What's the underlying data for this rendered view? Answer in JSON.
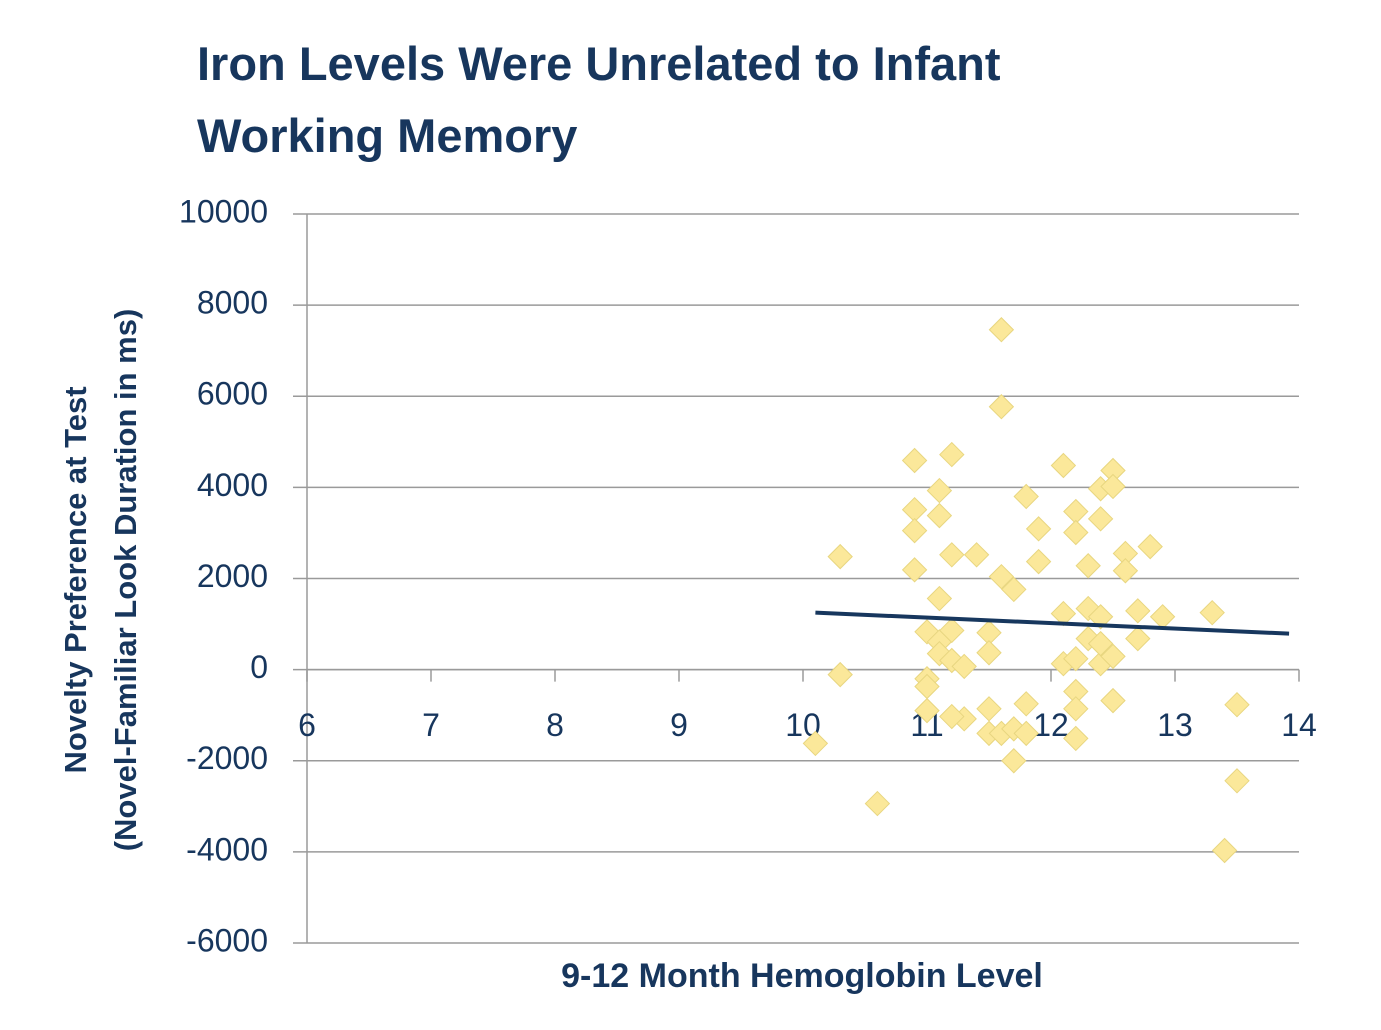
{
  "chart_data": {
    "type": "scatter",
    "title": "Iron Levels Were Unrelated to Infant Working Memory",
    "xlabel": "9-12 Month Hemoglobin Level",
    "ylabel": [
      "Novelty Preference at Test",
      "(Novel-Familiar Look Duration in ms)"
    ],
    "xlim": [
      6,
      14
    ],
    "xticks": [
      6,
      7,
      8,
      9,
      10,
      11,
      12,
      13,
      14
    ],
    "ylim": [
      -6000,
      10000
    ],
    "yticks": [
      -6000,
      -4000,
      -2000,
      0,
      2000,
      4000,
      6000,
      8000,
      10000
    ],
    "grid": true,
    "series": [
      {
        "color": "#fbe89a",
        "x": [
          10.1,
          10.3,
          10.3,
          10.6,
          10.9,
          10.9,
          10.9,
          10.9,
          11.0,
          11.0,
          11.0,
          11.0,
          11.1,
          11.1,
          11.1,
          11.1,
          11.1,
          11.2,
          11.2,
          11.2,
          11.2,
          11.3,
          11.3,
          11.2,
          11.4,
          11.5,
          11.5,
          11.5,
          11.5,
          11.6,
          11.6,
          11.6,
          11.7,
          11.6,
          11.7,
          11.7,
          11.8,
          11.8,
          11.8,
          11.9,
          11.9,
          12.1,
          12.1,
          12.1,
          12.2,
          12.2,
          12.2,
          12.2,
          12.2,
          12.2,
          12.3,
          12.3,
          12.3,
          12.4,
          12.4,
          12.4,
          12.4,
          12.5,
          12.5,
          12.5,
          12.5,
          12.6,
          12.6,
          12.7,
          12.7,
          12.8,
          12.9,
          13.3,
          13.5,
          13.5,
          13.4,
          12.4
        ],
        "values": [
          -1620,
          2480,
          -110,
          -2940,
          4590,
          3510,
          3050,
          2190,
          830,
          -200,
          -370,
          -900,
          3930,
          3380,
          1560,
          610,
          350,
          4720,
          2520,
          860,
          200,
          70,
          -1080,
          -1030,
          2520,
          810,
          370,
          -860,
          -1400,
          7460,
          5770,
          2040,
          1760,
          -1400,
          -2000,
          -1300,
          3800,
          -750,
          -1400,
          3090,
          2370,
          4480,
          1230,
          130,
          3470,
          3010,
          240,
          -480,
          -860,
          -1510,
          2280,
          1340,
          680,
          3970,
          3310,
          1160,
          130,
          4370,
          4020,
          290,
          -680,
          2550,
          2170,
          1290,
          680,
          2700,
          1160,
          1250,
          -770,
          -2440,
          -3970,
          570
        ]
      },
      {
        "type": "line",
        "color": "#17375e",
        "x": [
          10.1,
          13.92
        ],
        "values": [
          1250,
          790
        ]
      }
    ]
  }
}
